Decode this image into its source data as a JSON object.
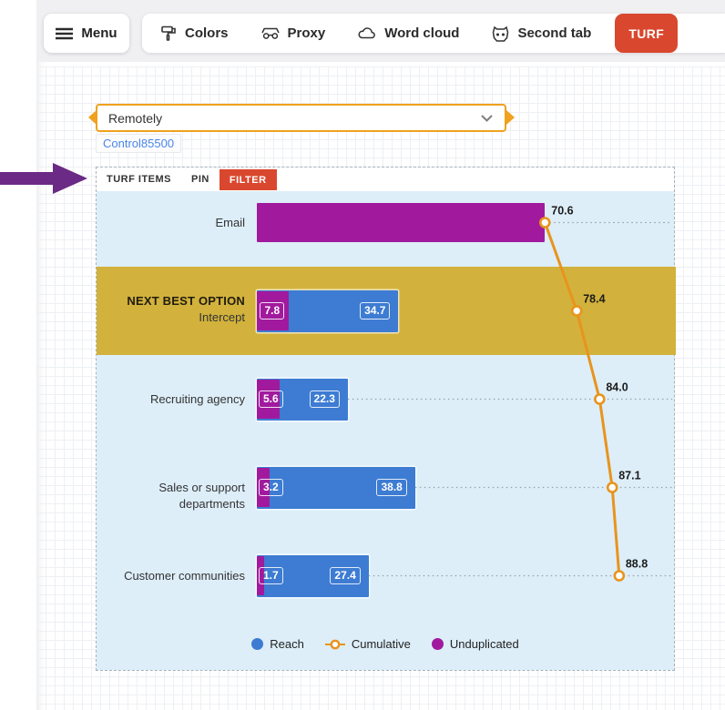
{
  "toolbar": {
    "menu_label": "Menu",
    "tabs": [
      {
        "label": "Colors",
        "icon": "paint-roller-icon"
      },
      {
        "label": "Proxy",
        "icon": "goggles-icon"
      },
      {
        "label": "Word cloud",
        "icon": "cloud-icon"
      },
      {
        "label": "Second tab",
        "icon": "dog-icon"
      }
    ],
    "active_tab": "TURF"
  },
  "filter_widget": {
    "selected_value": "Remotely",
    "control_id": "Control85500"
  },
  "panel": {
    "tabs": [
      {
        "label": "TURF ITEMS",
        "active": false
      },
      {
        "label": "PIN",
        "active": false
      },
      {
        "label": "FILTER",
        "active": true
      }
    ]
  },
  "chart_data": {
    "type": "bar",
    "orientation": "horizontal",
    "value_axis": {
      "min": 0,
      "max": 100,
      "visible": false
    },
    "items": [
      {
        "label": "Email",
        "badge": null,
        "unduplicated": 70.6,
        "unduplicated_label": null,
        "reach": null,
        "reach_label": null,
        "cumulative": 70.6,
        "cumulative_label": "70.6",
        "highlighted": false
      },
      {
        "label": "Intercept",
        "badge": "NEXT BEST OPTION",
        "unduplicated": 7.8,
        "unduplicated_label": "7.8",
        "reach": 34.7,
        "reach_label": "34.7",
        "cumulative": 78.4,
        "cumulative_label": "78.4",
        "highlighted": true
      },
      {
        "label": "Recruiting agency",
        "badge": null,
        "unduplicated": 5.6,
        "unduplicated_label": "5.6",
        "reach": 22.3,
        "reach_label": "22.3",
        "cumulative": 84.0,
        "cumulative_label": "84.0",
        "highlighted": false
      },
      {
        "label": "Sales or support departments",
        "badge": null,
        "unduplicated": 3.2,
        "unduplicated_label": "3.2",
        "reach": 38.8,
        "reach_label": "38.8",
        "cumulative": 87.1,
        "cumulative_label": "87.1",
        "highlighted": false
      },
      {
        "label": "Customer communities",
        "badge": null,
        "unduplicated": 1.7,
        "unduplicated_label": "1.7",
        "reach": 27.4,
        "reach_label": "27.4",
        "cumulative": 88.8,
        "cumulative_label": "88.8",
        "highlighted": false
      }
    ],
    "legend": [
      {
        "label": "Reach",
        "marker": "circle",
        "color": "#3d7cd2"
      },
      {
        "label": "Cumulative",
        "marker": "ring-line",
        "color": "#e8941c"
      },
      {
        "label": "Unduplicated",
        "marker": "circle",
        "color": "#a11a9e"
      }
    ],
    "legend_position": "bottom"
  },
  "colors": {
    "accent_orange": "#f0a11e",
    "active_red": "#d9482e",
    "reach_blue": "#3d7cd2",
    "unduplicated_magenta": "#a11a9e",
    "highlight_gold": "#d2b23c",
    "chart_bg_blue": "#ddeef9",
    "cumulative_line": "#e8941c",
    "annotation_purple": "#6b2a85",
    "link_blue": "#4a86e8"
  }
}
